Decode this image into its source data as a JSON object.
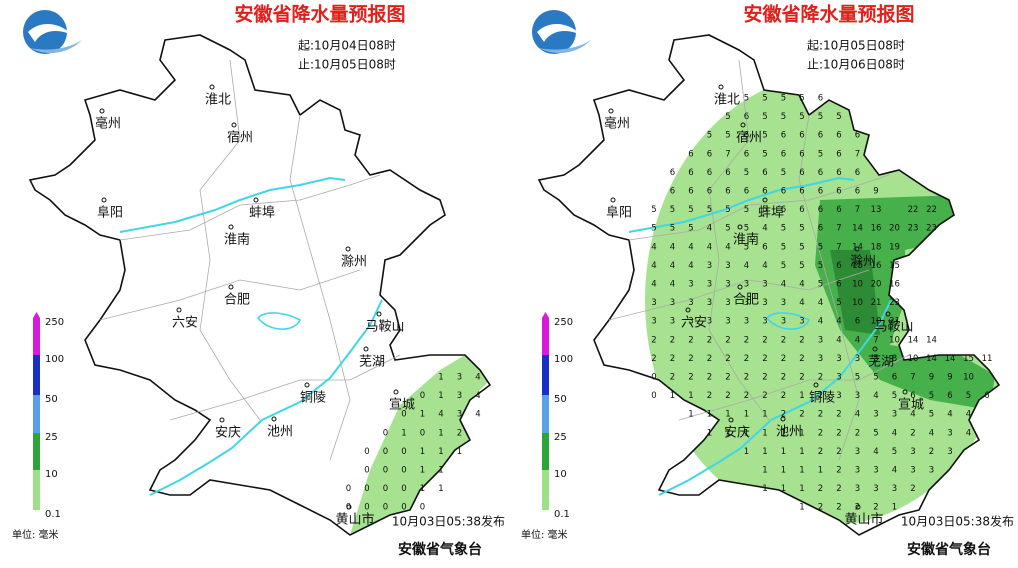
{
  "title": "安徽省降水量预报图",
  "cities": [
    "淮北",
    "亳州",
    "宿州",
    "阜阳",
    "蚌埠",
    "淮南",
    "滁州",
    "合肥",
    "六安",
    "马鞍山",
    "芜湖",
    "铜陵",
    "宣城",
    "安庆",
    "池州",
    "黄山市"
  ],
  "legend": {
    "levels": [
      250,
      100,
      50,
      25,
      10,
      0.1
    ],
    "colors": [
      "#d81bd8",
      "#1a2fc4",
      "#5aa0e6",
      "#2ea33a",
      "#9ee08a"
    ]
  },
  "unit": "单位: 毫米",
  "issued": "10月03日05:38发布",
  "publisher": "安徽省气象台",
  "panels": [
    {
      "start": "起:10月04日08时",
      "end": "止:10月05日08时",
      "grid": [
        [],
        [],
        [],
        [],
        [],
        [],
        [],
        [],
        [],
        [],
        [],
        [],
        [],
        [],
        [],
        [
          null,
          null,
          null,
          null,
          null,
          null,
          null,
          null,
          null,
          null,
          null,
          null,
          null,
          null,
          null,
          null,
          1,
          3,
          4
        ],
        [
          null,
          null,
          null,
          null,
          null,
          null,
          null,
          null,
          null,
          null,
          null,
          null,
          null,
          null,
          null,
          0,
          1,
          3,
          4
        ],
        [
          null,
          null,
          null,
          null,
          null,
          null,
          null,
          null,
          null,
          null,
          null,
          null,
          null,
          null,
          0,
          1,
          4,
          3,
          4
        ],
        [
          null,
          null,
          null,
          null,
          null,
          null,
          null,
          null,
          null,
          null,
          null,
          null,
          null,
          0,
          1,
          0,
          1,
          2
        ],
        [
          null,
          null,
          null,
          null,
          null,
          null,
          null,
          null,
          null,
          null,
          null,
          null,
          0,
          0,
          0,
          1,
          1,
          1
        ],
        [
          null,
          null,
          null,
          null,
          null,
          null,
          null,
          null,
          null,
          null,
          null,
          null,
          0,
          0,
          0,
          1,
          1
        ],
        [
          null,
          null,
          null,
          null,
          null,
          null,
          null,
          null,
          null,
          null,
          null,
          0,
          0,
          0,
          0,
          1,
          1
        ],
        [
          null,
          null,
          null,
          null,
          null,
          null,
          null,
          null,
          null,
          null,
          null,
          0,
          0,
          0,
          0,
          0
        ]
      ]
    },
    {
      "start": "起:10月05日08时",
      "end": "止:10月06日08时",
      "grid": [
        [
          null,
          null,
          null,
          null,
          null,
          5,
          5,
          5,
          5,
          6
        ],
        [
          null,
          null,
          null,
          null,
          5,
          6,
          5,
          5,
          5,
          5,
          5
        ],
        [
          null,
          null,
          null,
          5,
          5,
          6,
          5,
          6,
          6,
          6,
          6,
          6
        ],
        [
          null,
          null,
          6,
          6,
          7,
          6,
          5,
          6,
          6,
          5,
          6,
          7
        ],
        [
          null,
          6,
          6,
          6,
          6,
          5,
          6,
          5,
          6,
          6,
          6,
          6
        ],
        [
          null,
          6,
          6,
          6,
          6,
          6,
          6,
          6,
          6,
          6,
          6,
          6,
          9
        ],
        [
          5,
          5,
          5,
          5,
          5,
          5,
          5,
          6,
          6,
          6,
          6,
          7,
          13,
          null,
          22,
          22
        ],
        [
          5,
          5,
          5,
          4,
          5,
          5,
          4,
          5,
          5,
          6,
          7,
          14,
          16,
          20,
          23,
          23
        ],
        [
          4,
          4,
          4,
          4,
          4,
          5,
          6,
          5,
          5,
          5,
          7,
          14,
          18,
          19
        ],
        [
          4,
          4,
          4,
          3,
          3,
          4,
          4,
          5,
          5,
          5,
          6,
          15,
          16,
          15
        ],
        [
          4,
          4,
          3,
          3,
          3,
          3,
          3,
          4,
          4,
          5,
          6,
          10,
          20,
          16
        ],
        [
          3,
          3,
          3,
          3,
          3,
          3,
          3,
          3,
          4,
          4,
          5,
          10,
          21,
          23
        ],
        [
          3,
          3,
          3,
          3,
          3,
          3,
          3,
          3,
          3,
          4,
          4,
          6,
          10,
          21
        ],
        [
          2,
          2,
          2,
          2,
          2,
          2,
          2,
          2,
          2,
          3,
          4,
          4,
          7,
          10,
          14,
          14
        ],
        [
          2,
          2,
          2,
          2,
          2,
          2,
          2,
          2,
          2,
          3,
          3,
          3,
          5,
          8,
          10,
          14,
          14,
          15,
          11
        ],
        [
          0,
          2,
          2,
          2,
          2,
          2,
          2,
          2,
          2,
          2,
          3,
          5,
          5,
          6,
          7,
          9,
          9,
          10
        ],
        [
          0,
          1,
          1,
          2,
          2,
          2,
          2,
          2,
          1,
          2,
          3,
          3,
          4,
          5,
          6,
          5,
          6,
          5,
          6
        ],
        [
          null,
          null,
          1,
          1,
          1,
          1,
          1,
          2,
          2,
          2,
          2,
          4,
          3,
          3,
          4,
          5,
          4,
          4
        ],
        [
          null,
          null,
          null,
          1,
          1,
          1,
          1,
          1,
          1,
          2,
          2,
          2,
          5,
          4,
          2,
          4,
          3,
          4
        ],
        [
          null,
          null,
          null,
          null,
          null,
          1,
          1,
          1,
          1,
          2,
          2,
          3,
          4,
          5,
          3,
          2,
          3
        ],
        [
          null,
          null,
          null,
          null,
          null,
          null,
          1,
          1,
          1,
          1,
          2,
          3,
          3,
          4,
          3,
          3
        ],
        [
          null,
          null,
          null,
          null,
          null,
          null,
          1,
          1,
          1,
          2,
          2,
          3,
          3,
          3,
          2
        ],
        [
          null,
          null,
          null,
          null,
          null,
          null,
          null,
          null,
          1,
          2,
          2,
          2,
          2,
          1
        ]
      ]
    }
  ]
}
